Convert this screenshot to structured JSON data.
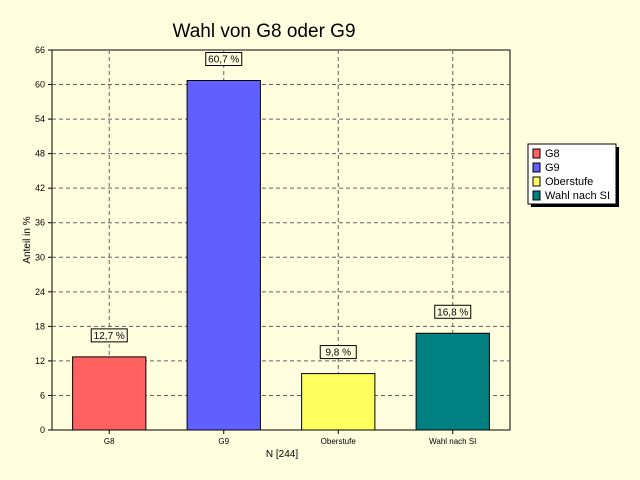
{
  "chart_data": {
    "type": "bar",
    "title": "Wahl von G8 oder G9",
    "xlabel": "N [244]",
    "ylabel": "Anteil in %",
    "ylim": [
      0,
      66
    ],
    "yticks": [
      "0",
      "6",
      "12",
      "18",
      "24",
      "30",
      "36",
      "42",
      "48",
      "54",
      "60",
      "66"
    ],
    "categories": [
      "G8",
      "G9",
      "Oberstufe",
      "Wahl nach SI"
    ],
    "values": [
      12.7,
      60.7,
      9.8,
      16.8
    ],
    "data_labels": [
      "12,7 %",
      "60,7 %",
      "9,8 %",
      "16,8 %"
    ],
    "colors": [
      "#FF6060",
      "#6060FF",
      "#FFFF60",
      "#008080"
    ],
    "legend": {
      "placement": "right",
      "entries": [
        "G8",
        "G9",
        "Oberstufe",
        "Wahl nach SI"
      ]
    },
    "grid": true
  }
}
